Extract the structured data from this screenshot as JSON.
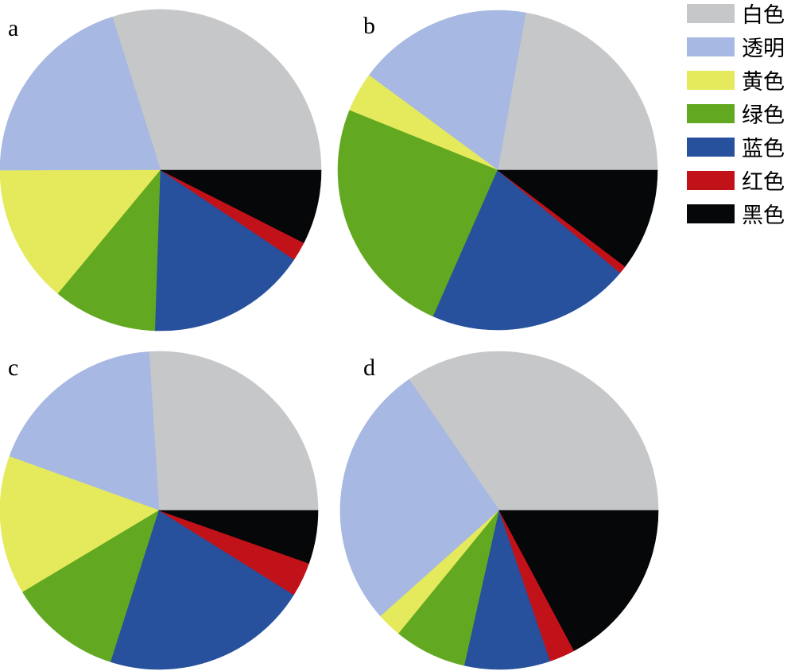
{
  "chart_data": [
    {
      "type": "pie",
      "panel": "a",
      "categories": [
        "白色",
        "透明",
        "黄色",
        "绿色",
        "蓝色",
        "红色",
        "黑色"
      ],
      "values": [
        29.6,
        20.0,
        13.8,
        10.4,
        16.0,
        1.9,
        7.4
      ]
    },
    {
      "type": "pie",
      "panel": "b",
      "categories": [
        "白色",
        "透明",
        "黄色",
        "绿色",
        "蓝色",
        "红色",
        "黑色"
      ],
      "values": [
        22.2,
        17.7,
        4.0,
        24.5,
        20.5,
        0.8,
        10.3
      ]
    },
    {
      "type": "pie",
      "panel": "c",
      "categories": [
        "白色",
        "透明",
        "黄色",
        "绿色",
        "蓝色",
        "红色",
        "黑色"
      ],
      "values": [
        26.0,
        18.5,
        14.1,
        11.5,
        21.0,
        3.5,
        5.4
      ]
    },
    {
      "type": "pie",
      "panel": "d",
      "categories": [
        "白色",
        "透明",
        "黄色",
        "绿色",
        "蓝色",
        "红色",
        "黑色"
      ],
      "values": [
        34.6,
        27.0,
        2.5,
        7.4,
        8.7,
        2.6,
        17.2
      ]
    }
  ],
  "legend": {
    "placement": "top-right",
    "items": [
      {
        "label": "白色",
        "color": "#c6c7c9"
      },
      {
        "label": "透明",
        "color": "#a7b8e2"
      },
      {
        "label": "黄色",
        "color": "#e5ea5c"
      },
      {
        "label": "绿色",
        "color": "#63a821"
      },
      {
        "label": "蓝色",
        "color": "#27509d"
      },
      {
        "label": "红色",
        "color": "#c1121a"
      },
      {
        "label": "黑色",
        "color": "#060709"
      }
    ]
  },
  "panel_labels": [
    "a",
    "b",
    "c",
    "d"
  ]
}
